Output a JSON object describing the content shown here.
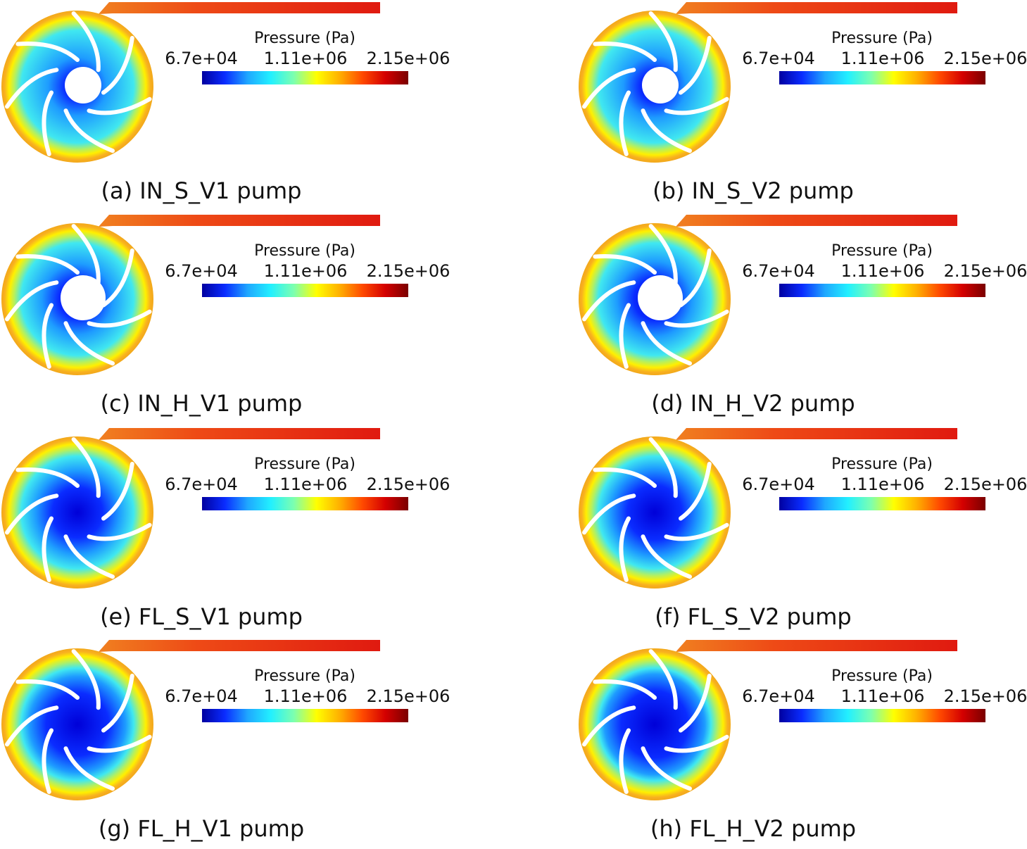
{
  "colorbar": {
    "title": "Pressure (Pa)",
    "ticks": [
      "6.7e+04",
      "1.11e+06",
      "2.15e+06"
    ],
    "stops": [
      "#0000a0",
      "#0a2cff",
      "#1fa8ff",
      "#22f0ff",
      "#7cffb0",
      "#ffff00",
      "#ffb000",
      "#ff4a00",
      "#d40000",
      "#7a0000"
    ]
  },
  "panels": [
    {
      "caption": "(a) IN_S_V1 pump",
      "hub": "small",
      "blue_level": 0.3
    },
    {
      "caption": "(b) IN_S_V2 pump",
      "hub": "small",
      "blue_level": 0.35
    },
    {
      "caption": "(c) IN_H_V1 pump",
      "hub": "large",
      "blue_level": 0.45
    },
    {
      "caption": "(d) IN_H_V2 pump",
      "hub": "large",
      "blue_level": 0.5
    },
    {
      "caption": "(e) FL_S_V1 pump",
      "hub": "none",
      "blue_level": 0.6
    },
    {
      "caption": "(f) FL_S_V2 pump",
      "hub": "none",
      "blue_level": 0.65
    },
    {
      "caption": "(g) FL_H_V1 pump",
      "hub": "none",
      "blue_level": 0.75
    },
    {
      "caption": "(h) FL_H_V2 pump",
      "hub": "none",
      "blue_level": 0.8
    }
  ],
  "colors": {
    "rim": "#f2a81a",
    "outlet": "#e01a10",
    "blade": "#ffffff"
  }
}
